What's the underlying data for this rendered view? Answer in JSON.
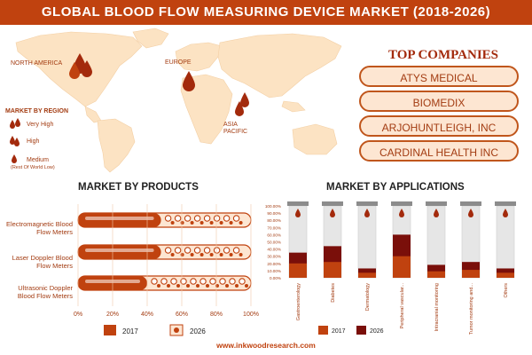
{
  "title": "GLOBAL BLOOD FLOW MEASURING DEVICE MARKET (2018-2026)",
  "map": {
    "regions": [
      "NORTH AMERICA",
      "EUROPE",
      "ASIA\nPACIFIC"
    ],
    "legend_title": "MARKET BY REGION",
    "legend": [
      {
        "label": "Very High",
        "sub": ""
      },
      {
        "label": "High",
        "sub": ""
      },
      {
        "label": "Medium",
        "sub": "(Rest Of World Low)"
      }
    ]
  },
  "top_companies": {
    "title": "TOP COMPANIES",
    "items": [
      "ATYS MEDICAL",
      "BIOMEDIX",
      "ARJOHUNTLEIGH, INC",
      "CARDINAL HEALTH INC"
    ]
  },
  "colors": {
    "accent": "#c0420f",
    "dark_red": "#7a0f0a",
    "map": "#fce3c3",
    "pill": "#fde6d2"
  },
  "chart_data": [
    {
      "type": "bar",
      "title": "MARKET BY PRODUCTS",
      "orientation": "horizontal",
      "categories": [
        "Electromagnetic Blood Flow Meters",
        "Laser Doppler Blood Flow Meters",
        "Ultrasonic Doppler Blood Flow Meters"
      ],
      "series": [
        {
          "name": "2017",
          "values": [
            48,
            48,
            40
          ]
        },
        {
          "name": "2026",
          "values": [
            100,
            100,
            100
          ]
        }
      ],
      "xlim": [
        0,
        100
      ],
      "x_ticks": [
        "0%",
        "20%",
        "40%",
        "60%",
        "80%",
        "100%"
      ],
      "legend": "bottom"
    },
    {
      "type": "bar",
      "title": "MARKET BY APPLICATIONS",
      "categories": [
        "Gastroenterology",
        "Diabetes",
        "Dermatology",
        "Peripheral vascular...",
        "Intracranial monitoring",
        "Tumor monitoring and...",
        "Others"
      ],
      "series": [
        {
          "name": "2017",
          "values": [
            20,
            22,
            7,
            30,
            9,
            11,
            7
          ]
        },
        {
          "name": "2026",
          "values": [
            35,
            44,
            13,
            60,
            18,
            22,
            13
          ]
        }
      ],
      "ylim": [
        0,
        100
      ],
      "y_ticks": [
        "0.00%",
        "10.00%",
        "20.00%",
        "30.00%",
        "40.00%",
        "50.00%",
        "60.00%",
        "70.00%",
        "80.00%",
        "90.00%",
        "100.00%"
      ],
      "legend": "bottom"
    }
  ],
  "url": "www.inkwoodresearch.com"
}
